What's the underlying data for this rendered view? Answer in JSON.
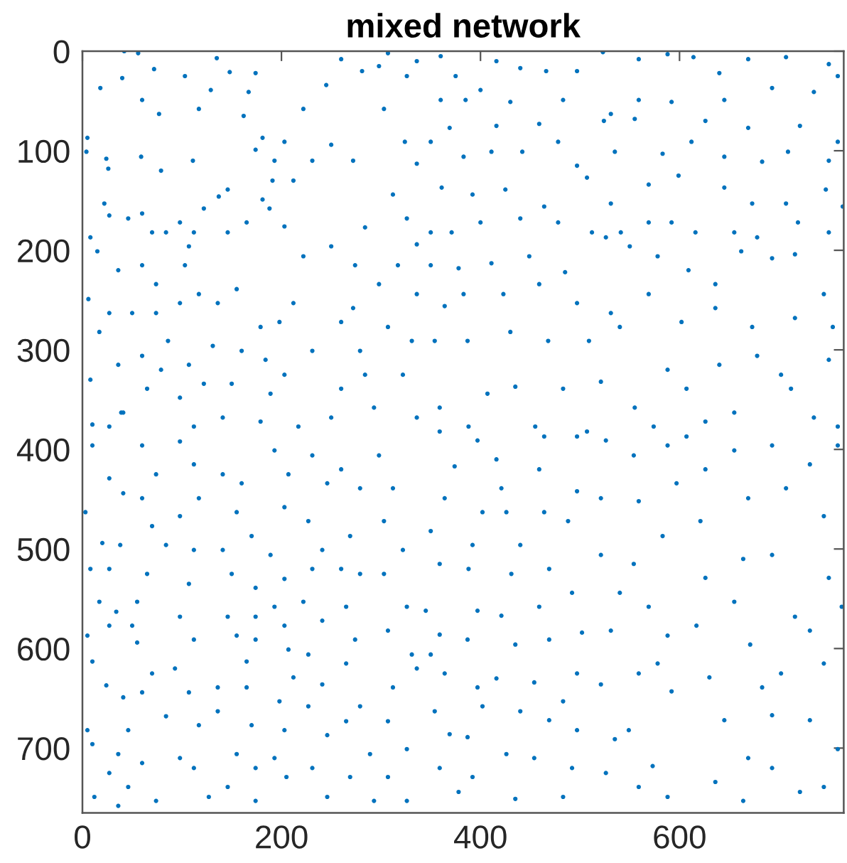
{
  "chart_data": {
    "type": "scatter",
    "title": "mixed network",
    "xlim": [
      0,
      765
    ],
    "ylim": [
      765,
      0
    ],
    "xticks": [
      0,
      200,
      400,
      600
    ],
    "yticks": [
      0,
      100,
      200,
      300,
      400,
      500,
      600,
      700
    ],
    "marker": "circle",
    "series": [
      {
        "color": "#0072bd",
        "x": [
          42,
          56,
          4,
          5,
          18,
          40,
          24,
          26,
          22,
          27,
          8,
          15,
          36,
          6,
          27,
          17,
          8,
          10,
          39,
          72,
          60,
          77,
          59,
          79,
          111,
          117,
          129,
          103,
          135,
          148,
          174,
          167,
          162,
          181,
          174,
          193,
          203,
          222,
          245,
          260,
          281,
          298,
          307,
          326,
          336,
          303,
          324,
          336,
          272,
          250,
          231,
          212,
          191,
          146,
          122,
          137,
          98,
          70,
          60,
          46,
          84,
          112,
          107,
          146,
          165,
          181,
          188,
          203,
          222,
          250,
          274,
          284,
          312,
          326,
          336,
          317,
          336,
          298,
          272,
          260,
          279,
          307,
          331,
          322,
          284,
          260,
          231,
          212,
          198,
          179,
          155,
          136,
          117,
          103,
          74,
          60,
          50,
          74,
          98,
          86,
          60,
          36,
          79,
          107,
          131,
          160,
          184,
          203,
          189,
          150,
          122,
          98,
          65,
          41,
          27,
          112,
          141,
          179,
          217,
          250,
          293,
          336,
          360,
          375,
          400,
          416,
          440,
          466,
          497,
          523,
          559,
          588,
          614,
          640,
          669,
          707,
          750,
          759,
          360,
          385,
          430,
          483,
          531,
          559,
          592,
          645,
          693,
          735,
          369,
          416,
          459,
          524,
          555,
          626,
          669,
          721,
          759,
          350,
          383,
          411,
          442,
          478,
          497,
          535,
          583,
          612,
          645,
          683,
          709,
          750,
          361,
          392,
          425,
          464,
          507,
          531,
          569,
          599,
          645,
          673,
          707,
          747,
          764,
          350,
          371,
          400,
          440,
          478,
          512,
          541,
          569,
          592,
          616,
          655,
          678,
          719,
          750,
          350,
          378,
          411,
          449,
          485,
          526,
          550,
          578,
          609,
          636,
          662,
          693,
          716,
          745,
          364,
          383,
          423,
          459,
          497,
          531,
          569,
          602,
          636,
          673,
          716,
          754,
          354,
          387,
          430,
          468,
          509,
          540,
          588,
          640,
          678,
          702,
          750,
          359,
          407,
          435,
          483,
          521,
          555,
          607,
          655,
          712,
          735,
          388,
          455,
          507,
          574,
          626,
          759,
          10,
          27,
          3,
          41,
          20,
          38,
          8,
          27,
          17,
          34,
          5,
          27,
          10,
          24,
          5,
          10,
          27,
          12,
          36,
          60,
          74,
          60,
          70,
          84,
          65,
          55,
          50,
          55,
          41,
          60,
          70,
          46,
          36,
          60,
          74,
          46,
          98,
          112,
          117,
          98,
          112,
          107,
          98,
          112,
          93,
          107,
          84,
          117,
          98,
          112,
          127,
          141,
          160,
          155,
          170,
          141,
          150,
          174,
          146,
          174,
          155,
          174,
          165,
          136,
          165,
          136,
          170,
          155,
          174,
          146,
          174,
          193,
          207,
          203,
          189,
          203,
          193,
          203,
          207,
          212,
          198,
          203,
          193,
          205,
          231,
          246,
          227,
          241,
          231,
          222,
          241,
          227,
          241,
          227,
          246,
          231,
          246,
          260,
          279,
          269,
          260,
          279,
          265,
          274,
          265,
          279,
          265,
          289,
          269,
          293,
          298,
          312,
          303,
          322,
          303,
          326,
          307,
          331,
          312,
          336,
          307,
          326,
          307,
          326,
          359,
          374,
          364,
          350,
          359,
          345,
          359,
          350,
          364,
          354,
          369,
          359,
          378,
          397,
          416,
          402,
          392,
          388,
          397,
          387,
          397,
          402,
          387,
          392,
          421,
          426,
          440,
          431,
          421,
          435,
          416,
          440,
          426,
          435,
          464,
          459,
          464,
          469,
          459,
          469,
          454,
          469,
          454,
          483,
          497,
          497,
          488,
          492,
          502,
          497,
          483,
          497,
          492,
          526,
          521,
          521,
          540,
          531,
          521,
          535,
          526,
          554,
          559,
          554,
          569,
          559,
          549,
          559,
          588,
          597,
          583,
          588,
          578,
          592,
          573,
          588,
          607,
          626,
          621,
          626,
          617,
          630,
          645,
          636,
          655,
          669,
          664,
          655,
          671,
          683,
          669,
          664,
          693,
          707,
          693,
          716,
          702,
          693,
          693,
          721,
          731,
          745,
          750,
          731,
          745,
          731,
          759,
          745,
          759,
          763
        ],
        "values": [
          0,
          2,
          101,
          87,
          37,
          27,
          108,
          118,
          153,
          165,
          187,
          201,
          220,
          249,
          263,
          282,
          330,
          375,
          363,
          18,
          49,
          63,
          106,
          120,
          110,
          58,
          39,
          25,
          7,
          21,
          22,
          41,
          65,
          87,
          99,
          110,
          91,
          58,
          34,
          8,
          20,
          15,
          2,
          25,
          10,
          58,
          91,
          113,
          110,
          94,
          110,
          130,
          130,
          139,
          158,
          146,
          172,
          182,
          163,
          168,
          182,
          182,
          196,
          182,
          172,
          149,
          158,
          176,
          206,
          196,
          215,
          177,
          144,
          168,
          194,
          215,
          244,
          234,
          258,
          272,
          301,
          277,
          291,
          325,
          325,
          339,
          301,
          253,
          272,
          277,
          239,
          253,
          244,
          215,
          234,
          215,
          263,
          263,
          253,
          291,
          306,
          315,
          320,
          315,
          296,
          301,
          310,
          325,
          344,
          334,
          334,
          348,
          339,
          363,
          377,
          377,
          368,
          372,
          377,
          368,
          358,
          368,
          5,
          25,
          39,
          10,
          17,
          20,
          20,
          1,
          8,
          3,
          6,
          22,
          8,
          6,
          13,
          25,
          49,
          49,
          51,
          49,
          63,
          49,
          51,
          49,
          37,
          41,
          77,
          75,
          73,
          70,
          68,
          70,
          77,
          75,
          91,
          91,
          106,
          101,
          101,
          91,
          115,
          101,
          103,
          91,
          106,
          111,
          101,
          110,
          137,
          144,
          139,
          156,
          127,
          153,
          134,
          125,
          137,
          153,
          153,
          139,
          156,
          182,
          182,
          172,
          168,
          172,
          182,
          182,
          172,
          172,
          182,
          182,
          187,
          172,
          182,
          215,
          218,
          213,
          206,
          222,
          187,
          196,
          206,
          220,
          234,
          201,
          208,
          204,
          244,
          256,
          244,
          244,
          234,
          253,
          263,
          244,
          272,
          258,
          277,
          268,
          277,
          291,
          291,
          282,
          291,
          291,
          277,
          320,
          315,
          306,
          325,
          310,
          358,
          344,
          337,
          339,
          332,
          358,
          339,
          363,
          339,
          368,
          377,
          377,
          382,
          377,
          372,
          377,
          396,
          429,
          463,
          444,
          494,
          496,
          520,
          520,
          553,
          563,
          587,
          577,
          613,
          637,
          682,
          696,
          725,
          749,
          758,
          396,
          425,
          449,
          477,
          496,
          525,
          553,
          577,
          594,
          649,
          644,
          625,
          682,
          706,
          715,
          753,
          739,
          392,
          415,
          449,
          467,
          501,
          535,
          568,
          591,
          620,
          644,
          668,
          677,
          710,
          720,
          749,
          425,
          434,
          463,
          487,
          501,
          525,
          539,
          568,
          568,
          587,
          591,
          613,
          639,
          639,
          663,
          677,
          706,
          720,
          739,
          753,
          401,
          425,
          458,
          506,
          530,
          558,
          577,
          601,
          629,
          653,
          682,
          710,
          729,
          406,
          434,
          472,
          501,
          520,
          553,
          572,
          606,
          636,
          658,
          687,
          720,
          749,
          420,
          439,
          487,
          520,
          525,
          558,
          591,
          615,
          658,
          673,
          706,
          729,
          753,
          406,
          439,
          472,
          501,
          525,
          558,
          582,
          606,
          639,
          620,
          673,
          701,
          729,
          753,
          382,
          417,
          449,
          482,
          515,
          562,
          586,
          606,
          625,
          663,
          686,
          720,
          744,
          391,
          410,
          463,
          496,
          520,
          562,
          591,
          639,
          658,
          689,
          729,
          439,
          463,
          496,
          525,
          567,
          596,
          630,
          663,
          706,
          751,
          387,
          420,
          463,
          520,
          558,
          591,
          634,
          672,
          710,
          749,
          387,
          442,
          472,
          544,
          584,
          625,
          653,
          682,
          720,
          391,
          449,
          506,
          544,
          582,
          636,
          691,
          725,
          406,
          452,
          515,
          558,
          625,
          682,
          739,
          396,
          434,
          487,
          587,
          615,
          643,
          718,
          749,
          387,
          420,
          472,
          529,
          577,
          629,
          672,
          734,
          401,
          449,
          510,
          553,
          596,
          639,
          710,
          753,
          396,
          439,
          506,
          568,
          625,
          667,
          720,
          744,
          415,
          467,
          529,
          582,
          615,
          672,
          701,
          739,
          396,
          558
        ]
      }
    ]
  }
}
